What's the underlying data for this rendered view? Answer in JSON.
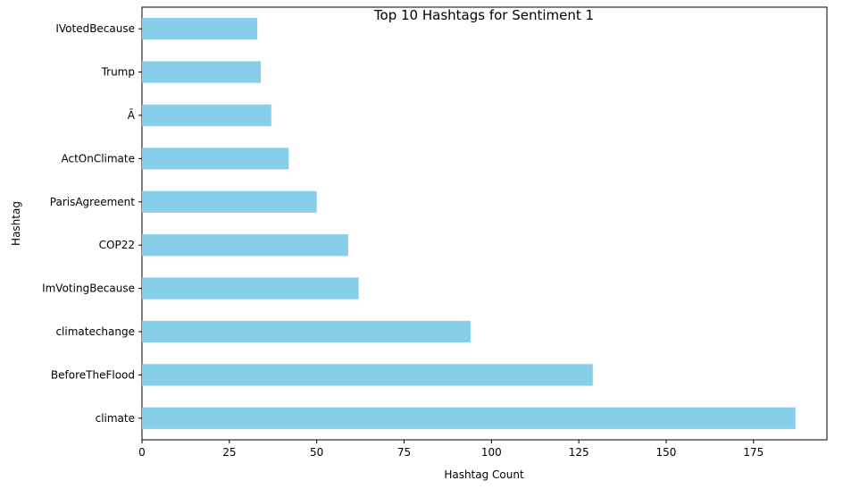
{
  "chart_data": {
    "type": "bar",
    "orientation": "horizontal",
    "title": "Top 10 Hashtags for Sentiment 1",
    "xlabel": "Hashtag Count",
    "ylabel": "Hashtag",
    "categories": [
      "IVotedBecause",
      "Trump",
      "Ā",
      "ActOnClimate",
      "ParisAgreement",
      "COP22",
      "ImVotingBecause",
      "climatechange",
      "BeforeTheFlood",
      "climate"
    ],
    "values": [
      33,
      34,
      37,
      42,
      50,
      59,
      62,
      94,
      129,
      187
    ],
    "xlim": [
      0,
      196
    ],
    "xticks": [
      0,
      25,
      50,
      75,
      100,
      125,
      150,
      175
    ],
    "bar_color": "#87CEEB",
    "grid": false,
    "legend": "none"
  }
}
